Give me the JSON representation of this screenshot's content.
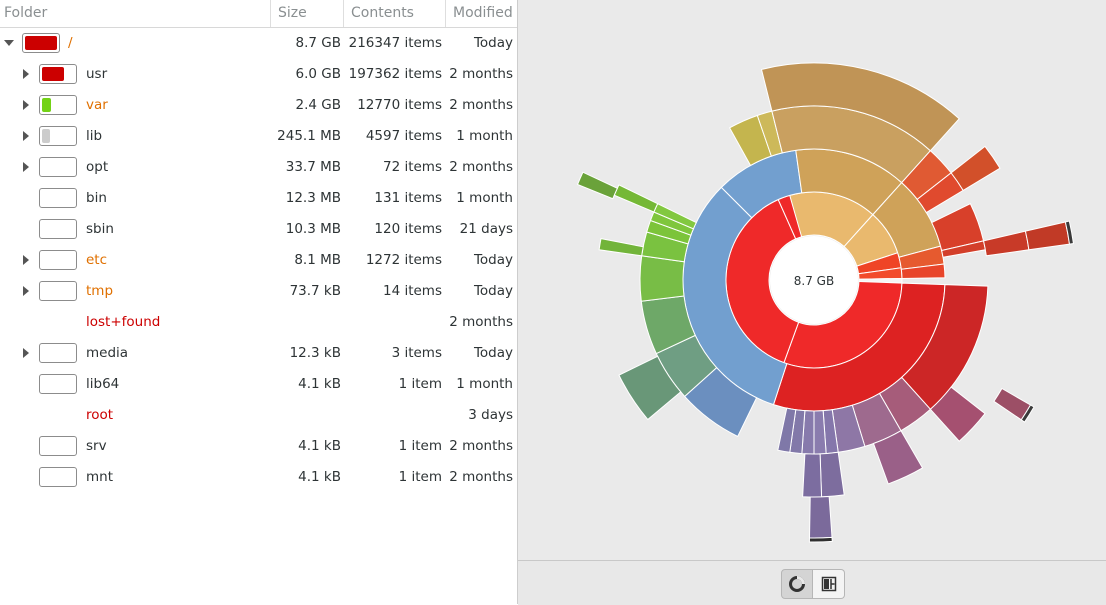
{
  "header": {
    "folder": "Folder",
    "size": "Size",
    "contents": "Contents",
    "modified": "Modified"
  },
  "rows": [
    {
      "name": "/",
      "size": "8.7 GB",
      "contents": "216347 items",
      "modified": "Today",
      "level": 0,
      "expander": "open",
      "bar": true,
      "fill": 1.0,
      "fill_color": "#cc0000",
      "name_color": "#e07000",
      "bold": false
    },
    {
      "name": "usr",
      "size": "6.0 GB",
      "contents": "197362 items",
      "modified": "2 months",
      "level": 1,
      "expander": "closed",
      "bar": true,
      "fill": 0.69,
      "fill_color": "#cc0000",
      "name_color": "#2e3436",
      "bold": false
    },
    {
      "name": "var",
      "size": "2.4 GB",
      "contents": "12770 items",
      "modified": "2 months",
      "level": 1,
      "expander": "closed",
      "bar": true,
      "fill": 0.28,
      "fill_color": "#73d216",
      "name_color": "#e07000",
      "bold": false
    },
    {
      "name": "lib",
      "size": "245.1 MB",
      "contents": "4597 items",
      "modified": "1 month",
      "level": 1,
      "expander": "closed",
      "bar": true,
      "fill": 0.03,
      "fill_color": "#cccccc",
      "name_color": "#2e3436",
      "bold": false
    },
    {
      "name": "opt",
      "size": "33.7 MB",
      "contents": "72 items",
      "modified": "2 months",
      "level": 1,
      "expander": "closed",
      "bar": true,
      "fill": 0.0,
      "fill_color": "#cccccc",
      "name_color": "#2e3436",
      "bold": false
    },
    {
      "name": "bin",
      "size": "12.3 MB",
      "contents": "131 items",
      "modified": "1 month",
      "level": 1,
      "expander": "none",
      "bar": true,
      "fill": 0.0,
      "fill_color": "#cccccc",
      "name_color": "#2e3436",
      "bold": false
    },
    {
      "name": "sbin",
      "size": "10.3 MB",
      "contents": "120 items",
      "modified": "21 days",
      "level": 1,
      "expander": "none",
      "bar": true,
      "fill": 0.0,
      "fill_color": "#cccccc",
      "name_color": "#2e3436",
      "bold": false
    },
    {
      "name": "etc",
      "size": "8.1 MB",
      "contents": "1272 items",
      "modified": "Today",
      "level": 1,
      "expander": "closed",
      "bar": true,
      "fill": 0.0,
      "fill_color": "#cccccc",
      "name_color": "#e07000",
      "bold": false
    },
    {
      "name": "tmp",
      "size": "73.7 kB",
      "contents": "14 items",
      "modified": "Today",
      "level": 1,
      "expander": "closed",
      "bar": true,
      "fill": 0.0,
      "fill_color": "#cccccc",
      "name_color": "#e07000",
      "bold": false
    },
    {
      "name": "lost+found",
      "size": "",
      "contents": "",
      "modified": "2 months",
      "level": 1,
      "expander": "none",
      "bar": false,
      "fill": 0.0,
      "fill_color": "#cccccc",
      "name_color": "#cc0000",
      "bold": false
    },
    {
      "name": "media",
      "size": "12.3 kB",
      "contents": "3 items",
      "modified": "Today",
      "level": 1,
      "expander": "closed",
      "bar": true,
      "fill": 0.0,
      "fill_color": "#cccccc",
      "name_color": "#2e3436",
      "bold": false
    },
    {
      "name": "lib64",
      "size": "4.1 kB",
      "contents": "1 item",
      "modified": "1 month",
      "level": 1,
      "expander": "none",
      "bar": true,
      "fill": 0.0,
      "fill_color": "#cccccc",
      "name_color": "#2e3436",
      "bold": false
    },
    {
      "name": "root",
      "size": "",
      "contents": "",
      "modified": "3 days",
      "level": 1,
      "expander": "none",
      "bar": false,
      "fill": 0.0,
      "fill_color": "#cccccc",
      "name_color": "#cc0000",
      "bold": false
    },
    {
      "name": "srv",
      "size": "4.1 kB",
      "contents": "1 item",
      "modified": "2 months",
      "level": 1,
      "expander": "none",
      "bar": true,
      "fill": 0.0,
      "fill_color": "#cccccc",
      "name_color": "#2e3436",
      "bold": false
    },
    {
      "name": "mnt",
      "size": "4.1 kB",
      "contents": "1 item",
      "modified": "2 months",
      "level": 1,
      "expander": "none",
      "bar": true,
      "fill": 0.0,
      "fill_color": "#cccccc",
      "name_color": "#2e3436",
      "bold": false
    }
  ],
  "chart": {
    "center_label": "8.7 GB"
  },
  "view_switcher": {
    "rings_icon": "rings-chart-icon",
    "treemap_icon": "treemap-chart-icon",
    "active": "rings"
  }
}
